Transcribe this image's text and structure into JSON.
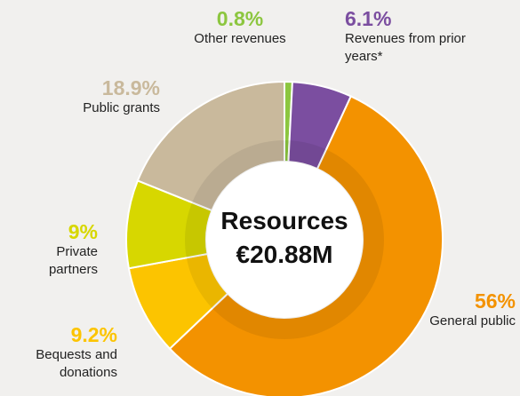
{
  "chart_data": {
    "type": "donut",
    "center_title": "Resources",
    "center_value": "€20.88M",
    "categories": [
      "Other revenues",
      "Revenues from prior years*",
      "General public",
      "Bequests and donations",
      "Private partners",
      "Public grants"
    ],
    "values": [
      0.8,
      6.1,
      56,
      9.2,
      9,
      18.9
    ],
    "value_labels": [
      "0.8%",
      "6.1%",
      "56%",
      "9.2%",
      "9%",
      "18.9%"
    ],
    "colors": [
      "#8cc63f",
      "#7b4ea0",
      "#f39200",
      "#fcc400",
      "#d7d700",
      "#c9b99c"
    ]
  }
}
